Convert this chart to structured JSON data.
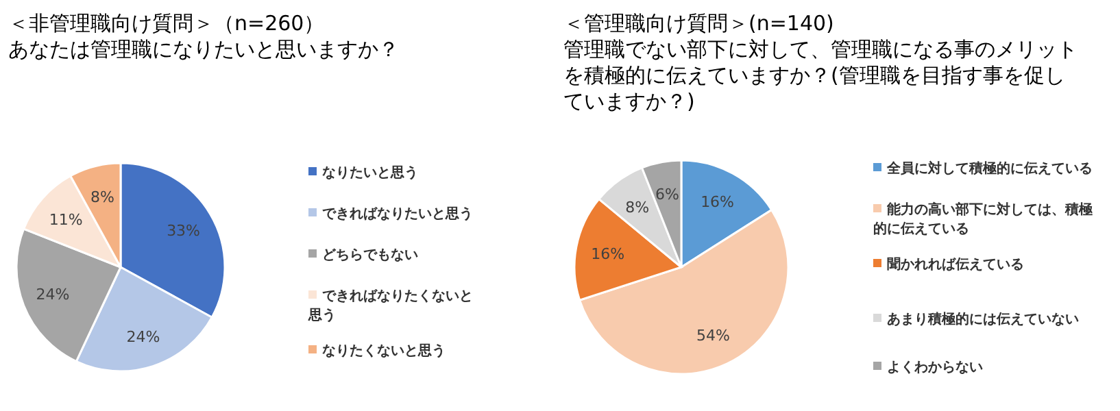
{
  "chart_data": [
    {
      "type": "pie",
      "title": "＜非管理職向け質問＞（n=260）",
      "subtitle": "あなたは管理職になりたいと思いますか？",
      "categories": [
        "なりたいと思う",
        "できればなりたいと思う",
        "どちらでもない",
        "できればなりたくないと思う",
        "なりたくないと思う"
      ],
      "values": [
        33,
        24,
        24,
        11,
        8
      ],
      "colors": [
        "#4472c4",
        "#b4c7e7",
        "#a5a5a5",
        "#fbe5d6",
        "#f4b183"
      ],
      "value_labels": [
        "33%",
        "24%",
        "24%",
        "11%",
        "8%"
      ],
      "legend": "right"
    },
    {
      "type": "pie",
      "title": "＜管理職向け質問＞(n=140)",
      "subtitle": "管理職でない部下に対して、管理職になる事のメリットを積極的に伝えていますか？(管理職を目指す事を促していますか？)",
      "categories": [
        "全員に対して積極的に伝えている",
        "能力の高い部下に対しては、積極的に伝えている",
        "聞かれれば伝えている",
        "あまり積極的には伝えていない",
        "よくわからない"
      ],
      "values": [
        16,
        54,
        16,
        8,
        6
      ],
      "colors": [
        "#5b9bd5",
        "#f8cbad",
        "#ed7d31",
        "#d9d9d9",
        "#a5a5a5"
      ],
      "value_labels": [
        "16%",
        "54%",
        "16%",
        "8%",
        "6%"
      ],
      "legend": "right"
    }
  ]
}
